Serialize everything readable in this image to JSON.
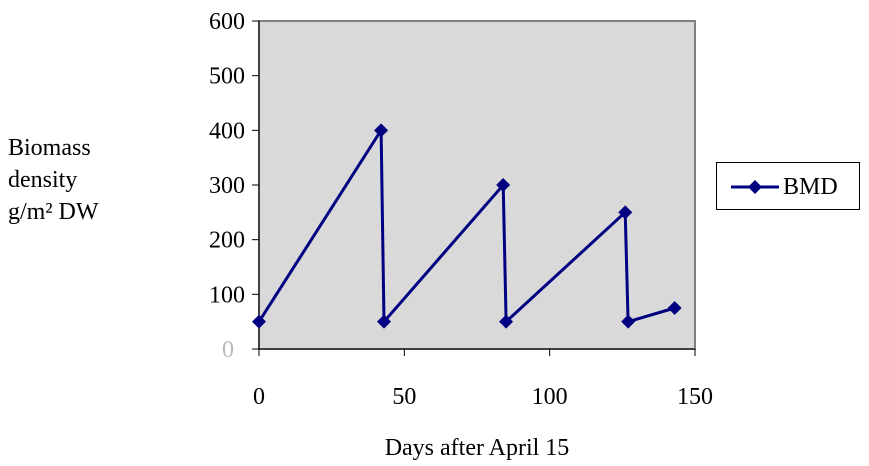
{
  "chart_data": {
    "type": "line",
    "xlabel": "Days after April 15",
    "ylabel_lines": [
      "Biomass",
      "density",
      "g/m² DW"
    ],
    "xlim": [
      0,
      150
    ],
    "ylim": [
      0,
      600
    ],
    "x_ticks": [
      0,
      50,
      100,
      150
    ],
    "y_ticks": [
      0,
      100,
      200,
      300,
      400,
      500,
      600
    ],
    "grid": false,
    "legend_position": "right",
    "plot_background": "#d9d9d9",
    "series": [
      {
        "name": "BMD",
        "color": "#000080",
        "marker": "diamond",
        "x": [
          0,
          42,
          43,
          84,
          85,
          126,
          127,
          143
        ],
        "y": [
          50,
          400,
          50,
          300,
          50,
          250,
          50,
          75
        ]
      }
    ]
  }
}
